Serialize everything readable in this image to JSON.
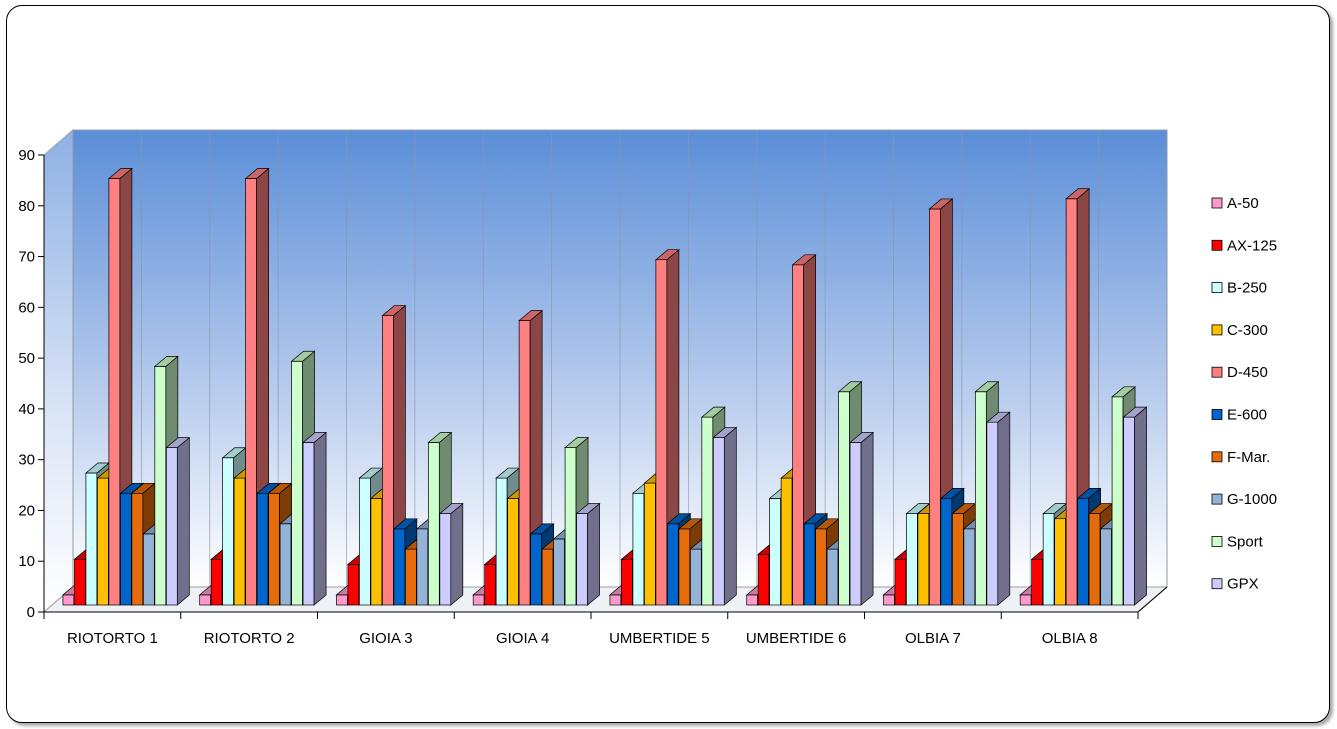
{
  "chart_data": {
    "type": "bar",
    "style": "3d-clustered-column",
    "title": "",
    "xlabel": "",
    "ylabel": "",
    "ylim": [
      0,
      90
    ],
    "yticks": [
      0,
      10,
      20,
      30,
      40,
      50,
      60,
      70,
      80,
      90
    ],
    "grid": "vertical-lines-only",
    "legend_position": "right",
    "back_wall": "blue-to-white gradient",
    "categories": [
      "RIOTORTO 1",
      "RIOTORTO 2",
      "GIOIA 3",
      "GIOIA 4",
      "UMBERTIDE 5",
      "UMBERTIDE 6",
      "OLBIA 7",
      "OLBIA 8"
    ],
    "series": [
      {
        "name": "A-50",
        "color": "#FF99CC",
        "values": [
          2,
          2,
          2,
          2,
          2,
          2,
          2,
          2
        ]
      },
      {
        "name": "AX-125",
        "color": "#FF0000",
        "values": [
          9,
          9,
          8,
          8,
          9,
          10,
          9,
          9
        ]
      },
      {
        "name": "B-250",
        "color": "#CCFFFF",
        "values": [
          26,
          29,
          25,
          25,
          22,
          21,
          18,
          18
        ]
      },
      {
        "name": "C-300",
        "color": "#FFC000",
        "values": [
          25,
          25,
          21,
          21,
          24,
          25,
          18,
          17
        ]
      },
      {
        "name": "D-450",
        "color": "#FF8080",
        "values": [
          84,
          84,
          57,
          56,
          68,
          67,
          78,
          80
        ]
      },
      {
        "name": "E-600",
        "color": "#0066CC",
        "values": [
          22,
          22,
          15,
          14,
          16,
          16,
          21,
          21
        ]
      },
      {
        "name": "F-Mar.",
        "color": "#E46C0A",
        "values": [
          22,
          22,
          11,
          11,
          15,
          15,
          18,
          18
        ]
      },
      {
        "name": "G-1000",
        "color": "#95B3D7",
        "values": [
          14,
          16,
          15,
          13,
          11,
          11,
          15,
          15
        ]
      },
      {
        "name": "Sport",
        "color": "#CCFFCC",
        "values": [
          47,
          48,
          32,
          31,
          37,
          42,
          42,
          41
        ]
      },
      {
        "name": "GPX",
        "color": "#CCCCFF",
        "values": [
          31,
          32,
          18,
          18,
          33,
          32,
          36,
          37
        ]
      }
    ]
  }
}
